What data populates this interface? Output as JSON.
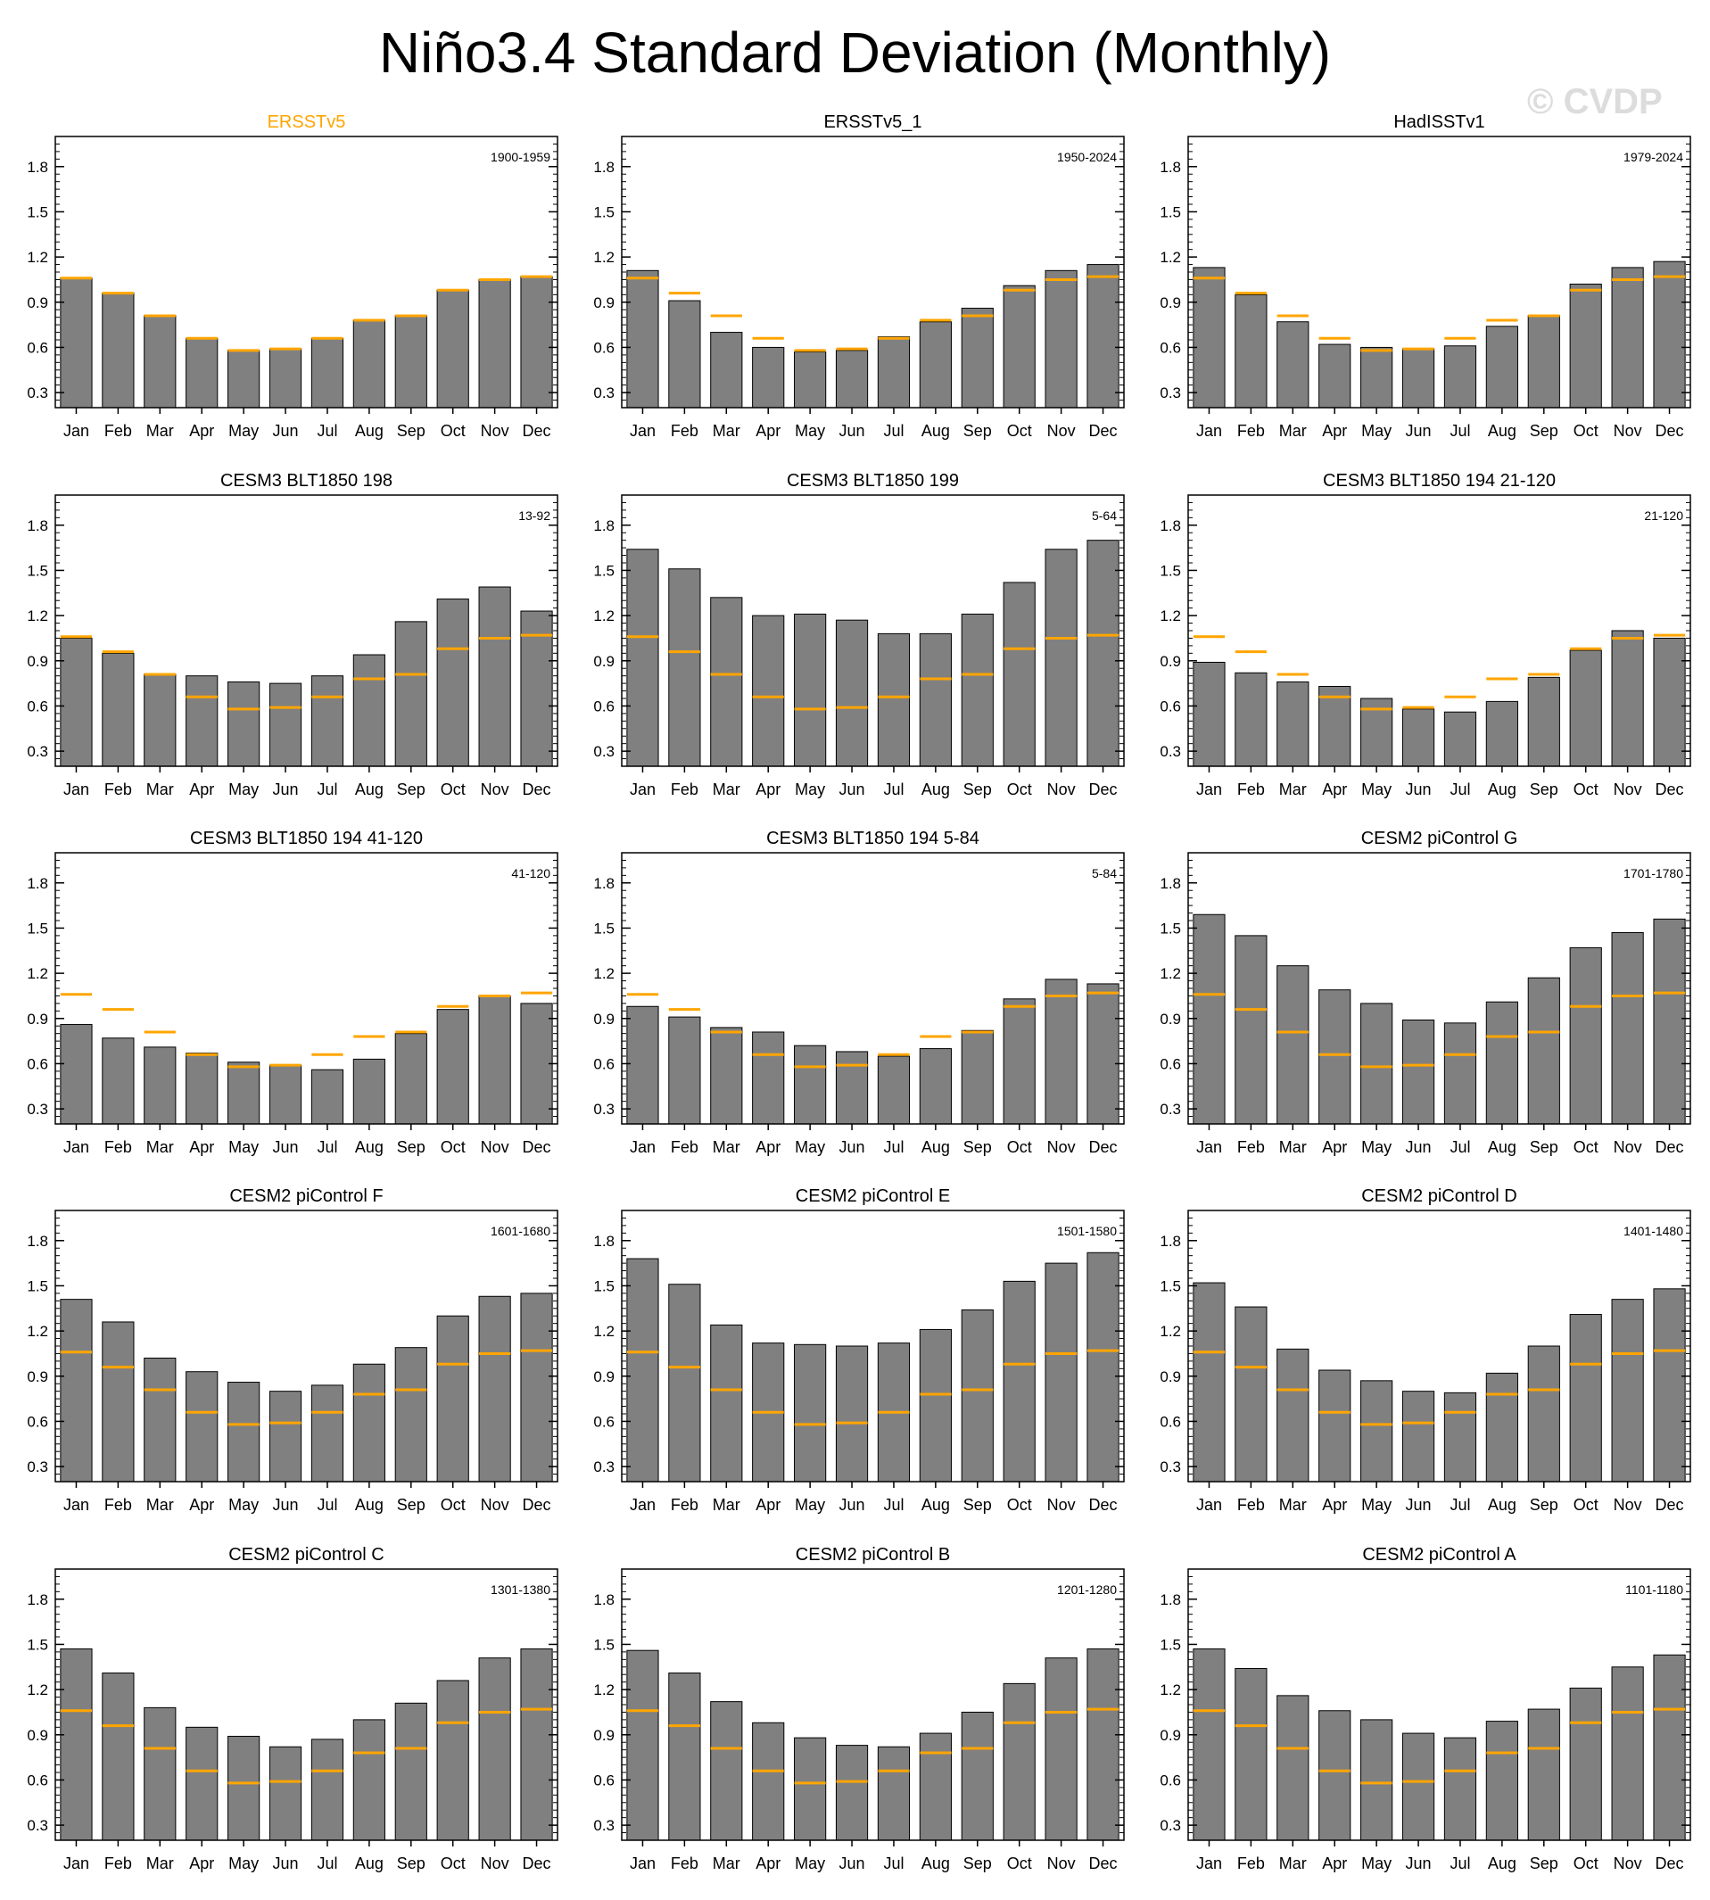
{
  "title": "Niño3.4 Standard Deviation (Monthly)",
  "watermark": "© CVDP",
  "colors": {
    "bar_fill": "#808080",
    "bar_stroke": "#000000",
    "reference_line": "#FFA500",
    "reference_title": "#FFA500"
  },
  "chart_data": {
    "type": "bar",
    "categories": [
      "Jan",
      "Feb",
      "Mar",
      "Apr",
      "May",
      "Jun",
      "Jul",
      "Aug",
      "Sep",
      "Oct",
      "Nov",
      "Dec"
    ],
    "yticks": [
      0.3,
      0.6,
      0.9,
      1.2,
      1.5,
      1.8
    ],
    "ylim": [
      0.2,
      2.0
    ],
    "reference": {
      "name": "ERSSTv5",
      "values": [
        1.06,
        0.96,
        0.81,
        0.66,
        0.58,
        0.59,
        0.66,
        0.78,
        0.81,
        0.98,
        1.05,
        1.07
      ]
    },
    "panels": [
      {
        "title": "ERSSTv5",
        "period": "1900-1959",
        "is_reference": true,
        "values": [
          1.06,
          0.96,
          0.81,
          0.66,
          0.58,
          0.59,
          0.66,
          0.78,
          0.81,
          0.98,
          1.05,
          1.07
        ]
      },
      {
        "title": "ERSSTv5_1",
        "period": "1950-2024",
        "is_reference": false,
        "values": [
          1.11,
          0.91,
          0.7,
          0.6,
          0.57,
          0.58,
          0.67,
          0.77,
          0.86,
          1.01,
          1.11,
          1.15
        ]
      },
      {
        "title": "HadISSTv1",
        "period": "1979-2024",
        "is_reference": false,
        "values": [
          1.13,
          0.95,
          0.77,
          0.62,
          0.6,
          0.59,
          0.61,
          0.74,
          0.81,
          1.02,
          1.13,
          1.17
        ]
      },
      {
        "title": "CESM3 BLT1850 198",
        "period": "13-92",
        "is_reference": false,
        "values": [
          1.05,
          0.95,
          0.81,
          0.8,
          0.76,
          0.75,
          0.8,
          0.94,
          1.16,
          1.31,
          1.39,
          1.23
        ]
      },
      {
        "title": "CESM3 BLT1850 199",
        "period": "5-64",
        "is_reference": false,
        "values": [
          1.64,
          1.51,
          1.32,
          1.2,
          1.21,
          1.17,
          1.08,
          1.08,
          1.21,
          1.42,
          1.64,
          1.7
        ]
      },
      {
        "title": "CESM3 BLT1850 194 21-120",
        "period": "21-120",
        "is_reference": false,
        "values": [
          0.89,
          0.82,
          0.76,
          0.73,
          0.65,
          0.58,
          0.56,
          0.63,
          0.79,
          0.97,
          1.1,
          1.05
        ]
      },
      {
        "title": "CESM3 BLT1850 194 41-120",
        "period": "41-120",
        "is_reference": false,
        "values": [
          0.86,
          0.77,
          0.71,
          0.67,
          0.61,
          0.59,
          0.56,
          0.63,
          0.8,
          0.96,
          1.05,
          1.0
        ]
      },
      {
        "title": "CESM3 BLT1850 194 5-84",
        "period": "5-84",
        "is_reference": false,
        "values": [
          0.98,
          0.91,
          0.84,
          0.81,
          0.72,
          0.68,
          0.65,
          0.7,
          0.82,
          1.03,
          1.16,
          1.13
        ]
      },
      {
        "title": "CESM2 piControl G",
        "period": "1701-1780",
        "is_reference": false,
        "values": [
          1.59,
          1.45,
          1.25,
          1.09,
          1.0,
          0.89,
          0.87,
          1.01,
          1.17,
          1.37,
          1.47,
          1.56
        ]
      },
      {
        "title": "CESM2 piControl F",
        "period": "1601-1680",
        "is_reference": false,
        "values": [
          1.41,
          1.26,
          1.02,
          0.93,
          0.86,
          0.8,
          0.84,
          0.98,
          1.09,
          1.3,
          1.43,
          1.45
        ]
      },
      {
        "title": "CESM2 piControl E",
        "period": "1501-1580",
        "is_reference": false,
        "values": [
          1.68,
          1.51,
          1.24,
          1.12,
          1.11,
          1.1,
          1.12,
          1.21,
          1.34,
          1.53,
          1.65,
          1.72
        ]
      },
      {
        "title": "CESM2 piControl D",
        "period": "1401-1480",
        "is_reference": false,
        "values": [
          1.52,
          1.36,
          1.08,
          0.94,
          0.87,
          0.8,
          0.79,
          0.92,
          1.1,
          1.31,
          1.41,
          1.48
        ]
      },
      {
        "title": "CESM2 piControl C",
        "period": "1301-1380",
        "is_reference": false,
        "values": [
          1.47,
          1.31,
          1.08,
          0.95,
          0.89,
          0.82,
          0.87,
          1.0,
          1.11,
          1.26,
          1.41,
          1.47
        ]
      },
      {
        "title": "CESM2 piControl B",
        "period": "1201-1280",
        "is_reference": false,
        "values": [
          1.46,
          1.31,
          1.12,
          0.98,
          0.88,
          0.83,
          0.82,
          0.91,
          1.05,
          1.24,
          1.41,
          1.47
        ]
      },
      {
        "title": "CESM2 piControl A",
        "period": "1101-1180",
        "is_reference": false,
        "values": [
          1.47,
          1.34,
          1.16,
          1.06,
          1.0,
          0.91,
          0.88,
          0.99,
          1.07,
          1.21,
          1.35,
          1.43
        ]
      }
    ]
  }
}
